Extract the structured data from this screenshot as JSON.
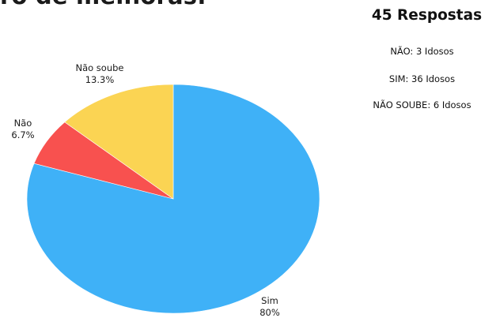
{
  "header": {
    "title_fragment": "ro de melhoras:"
  },
  "summary": {
    "title": "45 Respostas",
    "lines": [
      "NÃO: 3 Idosos",
      "SIM: 36 Idosos",
      "NÃO SOUBE: 6 Idosos"
    ]
  },
  "chart_data": {
    "type": "pie",
    "title": "",
    "slices": [
      {
        "label": "Sim",
        "value": 80,
        "value_label": "80%",
        "color": "#3fb1f7"
      },
      {
        "label": "Não",
        "value": 6.7,
        "value_label": "6.7%",
        "color": "#f8514f"
      },
      {
        "label": "Não soube",
        "value": 13.3,
        "value_label": "13.3%",
        "color": "#fbd453"
      }
    ],
    "start": "top",
    "direction": "clockwise",
    "legend": "none"
  }
}
